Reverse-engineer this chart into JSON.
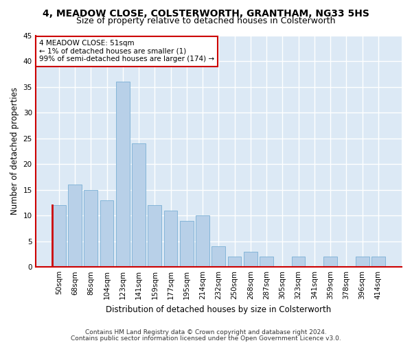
{
  "title1": "4, MEADOW CLOSE, COLSTERWORTH, GRANTHAM, NG33 5HS",
  "title2": "Size of property relative to detached houses in Colsterworth",
  "xlabel": "Distribution of detached houses by size in Colsterworth",
  "ylabel": "Number of detached properties",
  "footnote1": "Contains HM Land Registry data © Crown copyright and database right 2024.",
  "footnote2": "Contains public sector information licensed under the Open Government Licence v3.0.",
  "categories": [
    "50sqm",
    "68sqm",
    "86sqm",
    "104sqm",
    "123sqm",
    "141sqm",
    "159sqm",
    "177sqm",
    "195sqm",
    "214sqm",
    "232sqm",
    "250sqm",
    "268sqm",
    "287sqm",
    "305sqm",
    "323sqm",
    "341sqm",
    "359sqm",
    "378sqm",
    "396sqm",
    "414sqm"
  ],
  "values": [
    12,
    16,
    15,
    13,
    36,
    24,
    12,
    11,
    9,
    10,
    4,
    2,
    3,
    2,
    0,
    2,
    0,
    2,
    0,
    2,
    2
  ],
  "bar_color": "#b8d0e8",
  "bar_edge_color": "#7aafd4",
  "highlight_left_color": "#cc0000",
  "highlight_index": 0,
  "ylim": [
    0,
    45
  ],
  "yticks": [
    0,
    5,
    10,
    15,
    20,
    25,
    30,
    35,
    40,
    45
  ],
  "annotation_text": "4 MEADOW CLOSE: 51sqm\n← 1% of detached houses are smaller (1)\n99% of semi-detached houses are larger (174) →",
  "annotation_color": "#cc0000",
  "background_color": "#ffffff",
  "plot_bg_color": "#dce9f5",
  "grid_color": "#ffffff",
  "title_fontsize": 10,
  "subtitle_fontsize": 9,
  "axis_label_fontsize": 8.5,
  "tick_fontsize": 7.5,
  "footnote_fontsize": 6.5,
  "annotation_fontsize": 7.5
}
